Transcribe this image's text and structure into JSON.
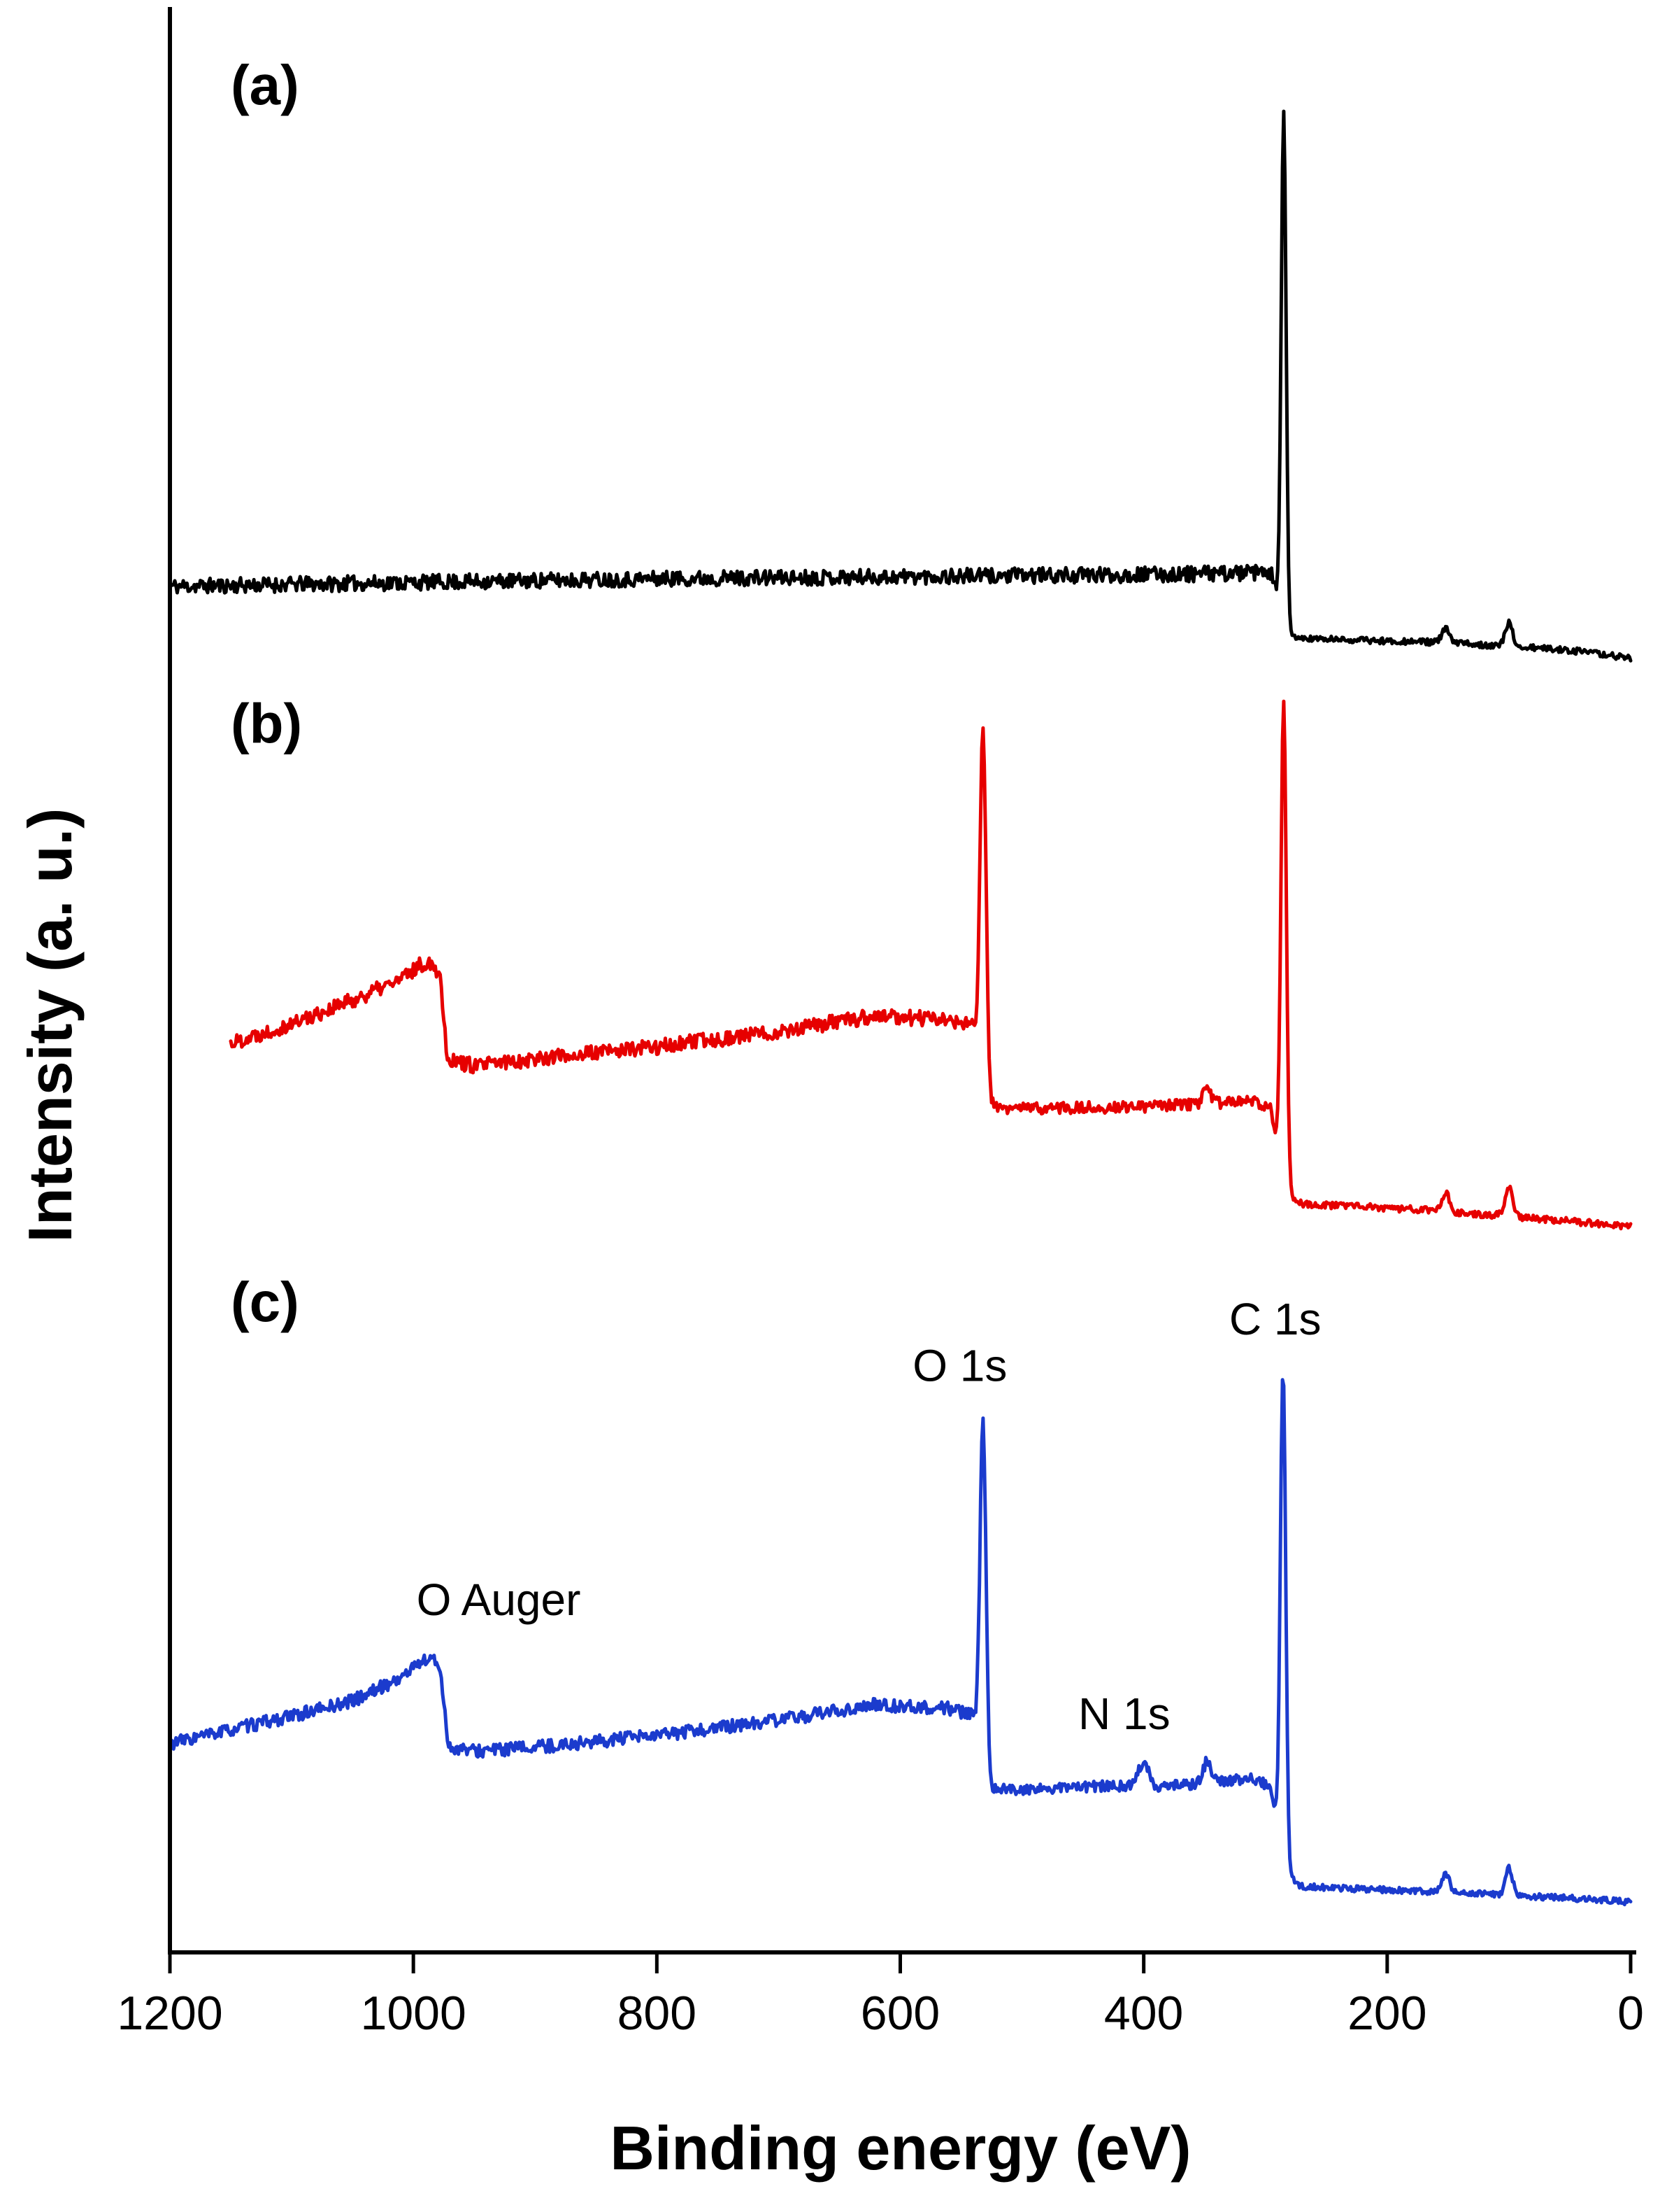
{
  "figure": {
    "background": "#ffffff",
    "xlabel": "Binding energy (eV)",
    "ylabel": "Intensity (a. u.)",
    "panel_labels": [
      {
        "text": "(a)",
        "x_ev": 1150,
        "y": 0.966
      },
      {
        "text": "(b)",
        "x_ev": 1150,
        "y": 0.636
      },
      {
        "text": "(c)",
        "x_ev": 1150,
        "y": 0.337
      }
    ],
    "annotations": [
      {
        "text": "O Auger",
        "x_ev": 930,
        "y": 0.183
      },
      {
        "text": "O 1s",
        "x_ev": 551,
        "y": 0.304
      },
      {
        "text": "N 1s",
        "x_ev": 416,
        "y": 0.124
      },
      {
        "text": "C 1s",
        "x_ev": 292,
        "y": 0.328
      }
    ]
  },
  "chart_data": {
    "type": "line",
    "title": "",
    "xlabel": "Binding energy (eV)",
    "ylabel": "Intensity (a. u.)",
    "x_axis": {
      "min": 0,
      "max": 1200,
      "reversed": true,
      "unit": "eV",
      "ticks": [
        1200,
        1000,
        800,
        600,
        400,
        200,
        0
      ]
    },
    "y_axis": {
      "label": "Intensity (a. u.)",
      "units": "arbitrary",
      "ticks": []
    },
    "series": [
      {
        "id": "a",
        "name": "spectrum (a)",
        "color": "#000000",
        "x_start": 1200,
        "x_end": 0,
        "peaks_assigned": [
          "C 1s"
        ],
        "baseline": [
          [
            1200,
            0.706
          ],
          [
            1000,
            0.708
          ],
          [
            800,
            0.71
          ],
          [
            600,
            0.711
          ],
          [
            400,
            0.712
          ],
          [
            300,
            0.713
          ],
          [
            293,
            0.711
          ],
          [
            284,
            0.681
          ],
          [
            270,
            0.679
          ],
          [
            150,
            0.677
          ],
          [
            50,
            0.673
          ],
          [
            0,
            0.669
          ]
        ],
        "peaks": [
          {
            "center": 285,
            "sigma": 2.0,
            "height": 0.266,
            "label": "C 1s"
          },
          {
            "center": 152,
            "sigma": 3,
            "height": 0.007
          },
          {
            "center": 100,
            "sigma": 3,
            "height": 0.012
          }
        ],
        "noise": [
          {
            "from": 1200,
            "to": 290,
            "amp": 0.004
          },
          {
            "from": 290,
            "to": 0,
            "amp": 0.0016
          }
        ],
        "seed": 11
      },
      {
        "id": "b",
        "name": "spectrum (b)",
        "color": "#e60000",
        "x_start": 1150,
        "x_end": 0,
        "peaks_assigned": [
          "O Auger",
          "O 1s",
          "C 1s"
        ],
        "baseline": [
          [
            1150,
            0.47
          ],
          [
            1100,
            0.48
          ],
          [
            1050,
            0.492
          ],
          [
            1010,
            0.503
          ],
          [
            995,
            0.51
          ],
          [
            985,
            0.512
          ],
          [
            978,
            0.505
          ],
          [
            972,
            0.462
          ],
          [
            950,
            0.458
          ],
          [
            900,
            0.462
          ],
          [
            800,
            0.468
          ],
          [
            700,
            0.476
          ],
          [
            620,
            0.484
          ],
          [
            560,
            0.482
          ],
          [
            540,
            0.478
          ],
          [
            527,
            0.438
          ],
          [
            515,
            0.436
          ],
          [
            400,
            0.437
          ],
          [
            310,
            0.44
          ],
          [
            296,
            0.437
          ],
          [
            283,
            0.392
          ],
          [
            270,
            0.387
          ],
          [
            150,
            0.383
          ],
          [
            50,
            0.378
          ],
          [
            0,
            0.375
          ]
        ],
        "peaks": [
          {
            "center": 532,
            "sigma": 2.5,
            "height": 0.18,
            "label": "O 1s"
          },
          {
            "center": 348,
            "sigma": 3,
            "height": 0.008
          },
          {
            "center": 285,
            "sigma": 2.2,
            "height": 0.248,
            "label": "C 1s"
          },
          {
            "center": 152,
            "sigma": 3,
            "height": 0.01
          },
          {
            "center": 100,
            "sigma": 3,
            "height": 0.016
          }
        ],
        "noise": [
          {
            "from": 1150,
            "to": 540,
            "amp": 0.004
          },
          {
            "from": 540,
            "to": 300,
            "amp": 0.003
          },
          {
            "from": 300,
            "to": 0,
            "amp": 0.0018
          }
        ],
        "seed": 22
      },
      {
        "id": "c",
        "name": "spectrum (c)",
        "color": "#1b3bcd",
        "x_start": 1200,
        "x_end": 0,
        "peaks_assigned": [
          "O Auger",
          "O 1s",
          "N 1s",
          "C 1s"
        ],
        "baseline": [
          [
            1200,
            0.108
          ],
          [
            1150,
            0.115
          ],
          [
            1100,
            0.122
          ],
          [
            1050,
            0.13
          ],
          [
            1010,
            0.142
          ],
          [
            995,
            0.15
          ],
          [
            985,
            0.152
          ],
          [
            978,
            0.147
          ],
          [
            971,
            0.106
          ],
          [
            950,
            0.104
          ],
          [
            900,
            0.106
          ],
          [
            800,
            0.112
          ],
          [
            700,
            0.12
          ],
          [
            620,
            0.128
          ],
          [
            560,
            0.126
          ],
          [
            540,
            0.122
          ],
          [
            527,
            0.085
          ],
          [
            500,
            0.084
          ],
          [
            430,
            0.086
          ],
          [
            380,
            0.086
          ],
          [
            310,
            0.09
          ],
          [
            296,
            0.086
          ],
          [
            283,
            0.04
          ],
          [
            270,
            0.034
          ],
          [
            150,
            0.031
          ],
          [
            50,
            0.028
          ],
          [
            0,
            0.026
          ]
        ],
        "peaks": [
          {
            "center": 532,
            "sigma": 2.5,
            "height": 0.175,
            "label": "O 1s"
          },
          {
            "center": 400,
            "sigma": 4,
            "height": 0.013,
            "label": "N 1s"
          },
          {
            "center": 348,
            "sigma": 3,
            "height": 0.011
          },
          {
            "center": 285.5,
            "sigma": 2.2,
            "height": 0.253,
            "label": "C 1s"
          },
          {
            "center": 152,
            "sigma": 3,
            "height": 0.01
          },
          {
            "center": 100,
            "sigma": 3,
            "height": 0.014
          }
        ],
        "noise": [
          {
            "from": 1200,
            "to": 540,
            "amp": 0.0034
          },
          {
            "from": 540,
            "to": 300,
            "amp": 0.0028
          },
          {
            "from": 300,
            "to": 0,
            "amp": 0.0016
          }
        ],
        "seed": 33
      }
    ]
  }
}
